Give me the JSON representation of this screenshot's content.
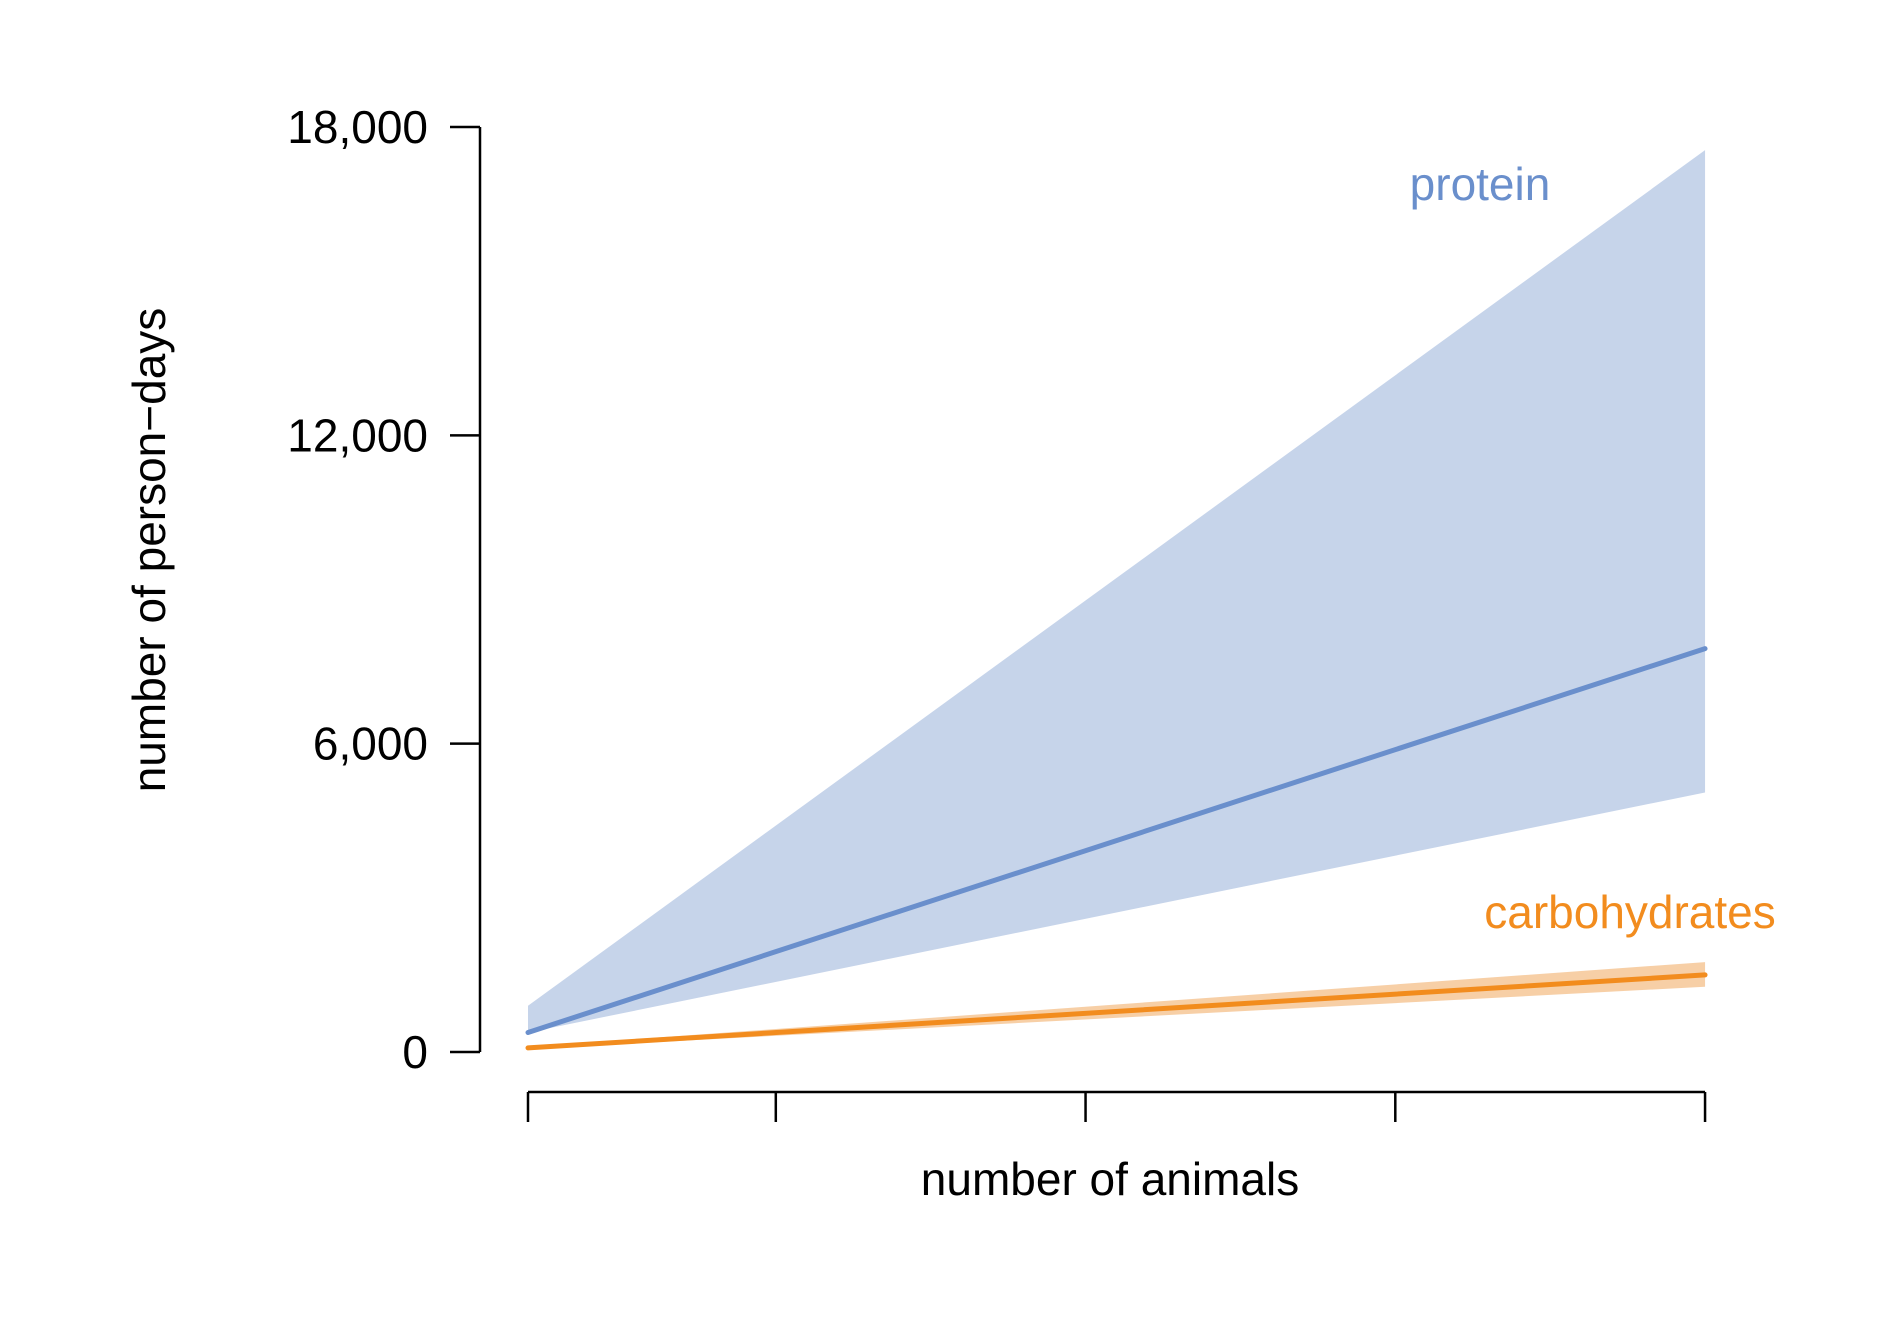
{
  "chart_data": {
    "type": "line",
    "title": "",
    "xlabel": "number of animals",
    "ylabel": "number of person−days",
    "xlim": [
      0,
      5
    ],
    "ylim": [
      0,
      18000
    ],
    "x_ticks": [
      0,
      1,
      2.25,
      3.5,
      4.75
    ],
    "y_ticks": [
      0,
      6000,
      12000,
      18000
    ],
    "y_tick_labels": [
      "0",
      "6,000",
      "12,000",
      "18,000"
    ],
    "grid": false,
    "legend": "none (direct labels)",
    "x": [
      0,
      4.75
    ],
    "series": [
      {
        "name": "protein",
        "color": "#6a8fcc",
        "band_color": "#c6d4ea",
        "values": [
          380,
          7850
        ],
        "lower": [
          380,
          5050
        ],
        "upper": [
          900,
          17550
        ]
      },
      {
        "name": "carbohydrates",
        "color": "#f28c1e",
        "band_color": "#f6c796",
        "values": [
          80,
          1500
        ],
        "lower": [
          60,
          1270
        ],
        "upper": [
          100,
          1750
        ]
      }
    ]
  }
}
